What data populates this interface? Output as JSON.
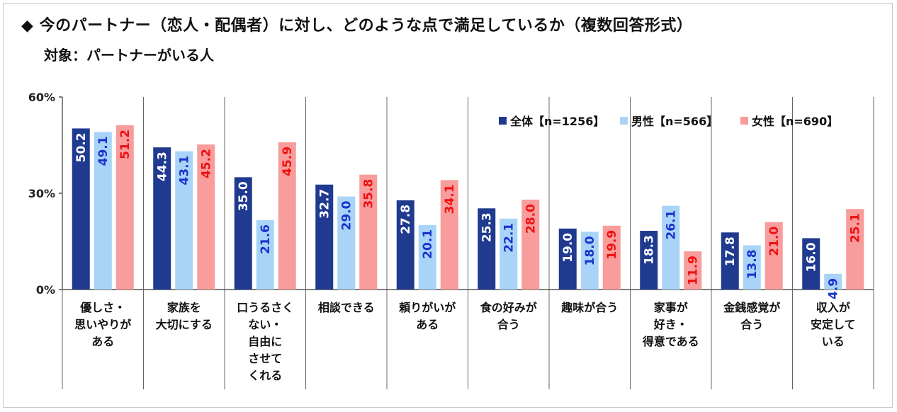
{
  "title": "◆ 今のパートナー（恋人・配偶者）に対し、どのような点で満足しているか（複数回答形式）",
  "subtitle": "対象：パートナーがいる人",
  "chart_data": {
    "type": "bar",
    "ylim": [
      0,
      60
    ],
    "yticks": [
      {
        "value": 0,
        "label": "0%"
      },
      {
        "value": 30,
        "label": "30%"
      },
      {
        "value": 60,
        "label": "60%"
      }
    ],
    "categories": [
      [
        "優しさ・",
        "思いやりが",
        "ある"
      ],
      [
        "家族を",
        "大切にする"
      ],
      [
        "口うるさく",
        "ない・",
        "自由に",
        "させて",
        "くれる"
      ],
      [
        "相談できる"
      ],
      [
        "頼りがいが",
        "ある"
      ],
      [
        "食の好みが",
        "合う"
      ],
      [
        "趣味が合う"
      ],
      [
        "家事が",
        "好き・",
        "得意である"
      ],
      [
        "金銭感覚が",
        "合う"
      ],
      [
        "収入が",
        "安定して",
        "いる"
      ]
    ],
    "series": [
      {
        "name": "全体【n=1256】",
        "color": "#1f3a8f",
        "label_color": "#ffffff",
        "values": [
          50.2,
          44.3,
          35.0,
          32.7,
          27.8,
          25.3,
          19.0,
          18.3,
          17.8,
          16.0
        ],
        "labels": [
          "50.2",
          "44.3",
          "35.0",
          "32.7",
          "27.8",
          "25.3",
          "19.0",
          "18.3",
          "17.8",
          "16.0"
        ]
      },
      {
        "name": "男性【n=566】",
        "color": "#a9d4f7",
        "label_color": "#1a33cc",
        "values": [
          49.1,
          43.1,
          21.6,
          29.0,
          20.1,
          22.1,
          18.0,
          26.1,
          13.8,
          4.9
        ],
        "labels": [
          "49.1",
          "43.1",
          "21.6",
          "29.0",
          "20.1",
          "22.1",
          "18.0",
          "26.1",
          "13.8",
          "4.9"
        ]
      },
      {
        "name": "女性【n=690】",
        "color": "#f89c9c",
        "label_color": "#ee1111",
        "values": [
          51.2,
          45.2,
          45.9,
          35.8,
          34.1,
          28.0,
          19.9,
          11.9,
          21.0,
          25.1
        ],
        "labels": [
          "51.2",
          "45.2",
          "45.9",
          "35.8",
          "34.1",
          "28.0",
          "19.9",
          "11.9",
          "21.0",
          "25.1"
        ]
      }
    ],
    "legend": "top-right",
    "grid": false
  }
}
